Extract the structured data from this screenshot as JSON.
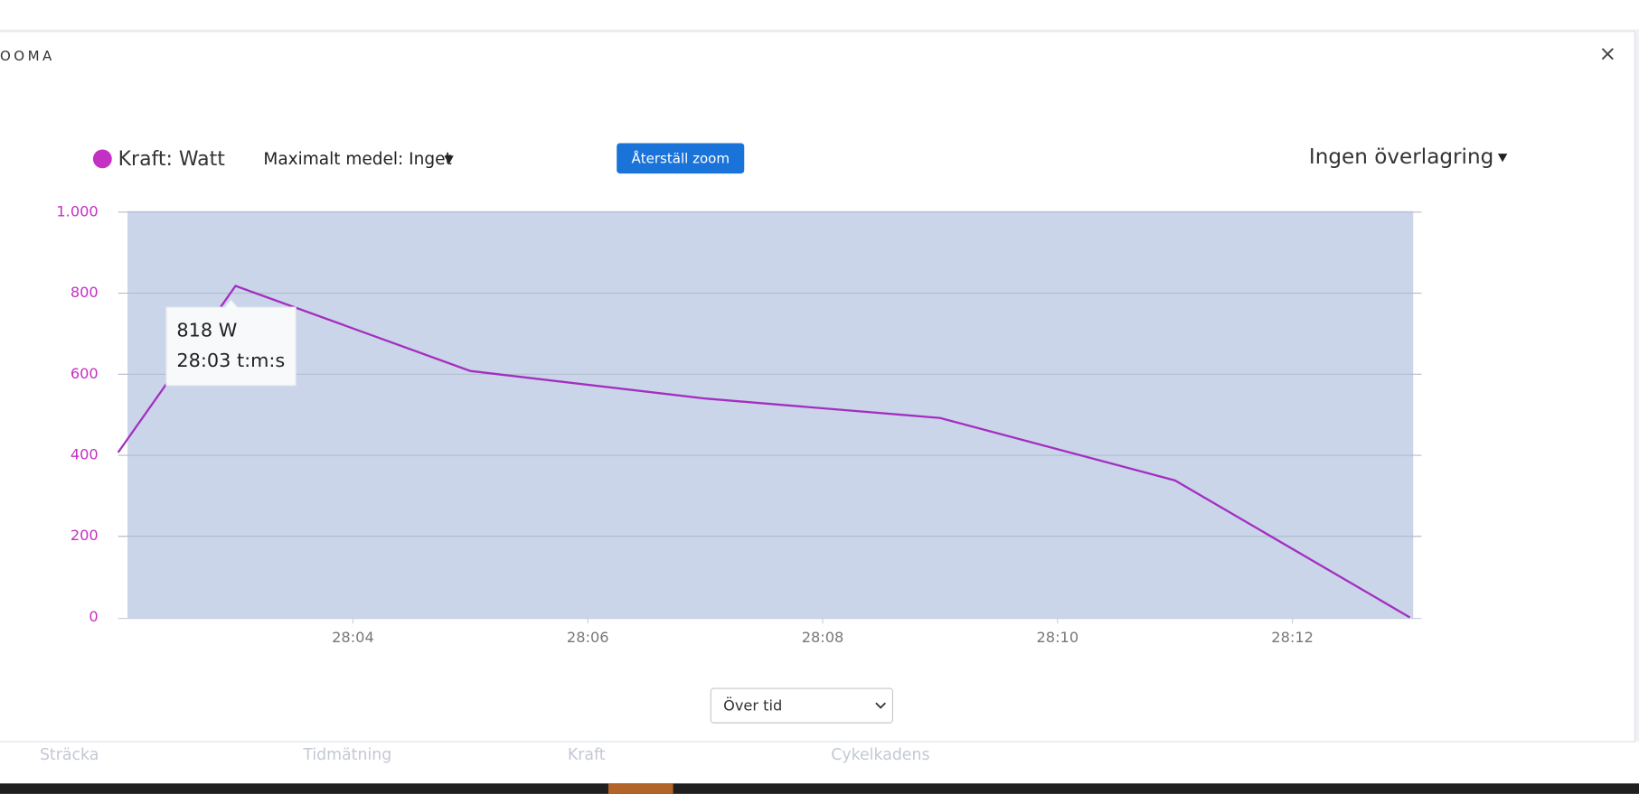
{
  "ui": {
    "dialog_title": "OOMA",
    "close": "×",
    "max_average": "Maximalt medel: Inget",
    "reset_zoom": "Återställ zoom",
    "overlay": "Ingen överlagring",
    "mode_select": "Över tid",
    "tooltip": {
      "value": "818 W",
      "time": "28:03 t:m:s"
    },
    "background_tabs": [
      "Sträcka",
      "Tidmätning",
      "Kraft",
      "Cykelkadens"
    ]
  },
  "chart_data": {
    "type": "line",
    "x": [
      1682,
      1683,
      1685,
      1687,
      1689,
      1691,
      1693
    ],
    "series": [
      {
        "name": "Kraft: Watt",
        "color": "#a42fbf",
        "values": [
          407,
          818,
          608,
          540,
          492,
          338,
          0
        ]
      }
    ],
    "xlim": [
      1682,
      1693.1
    ],
    "xticks": [
      {
        "value": 1684,
        "label": "28:04"
      },
      {
        "value": 1686,
        "label": "28:06"
      },
      {
        "value": 1688,
        "label": "28:08"
      },
      {
        "value": 1690,
        "label": "28:10"
      },
      {
        "value": 1692,
        "label": "28:12"
      }
    ],
    "ylim": [
      0,
      1000
    ],
    "yticks": [
      0,
      200,
      400,
      600,
      800,
      {
        "value": 1000,
        "label": "1.000"
      }
    ],
    "grid": true,
    "legend": "top-left",
    "axis_label_color": "#c42fc4"
  }
}
